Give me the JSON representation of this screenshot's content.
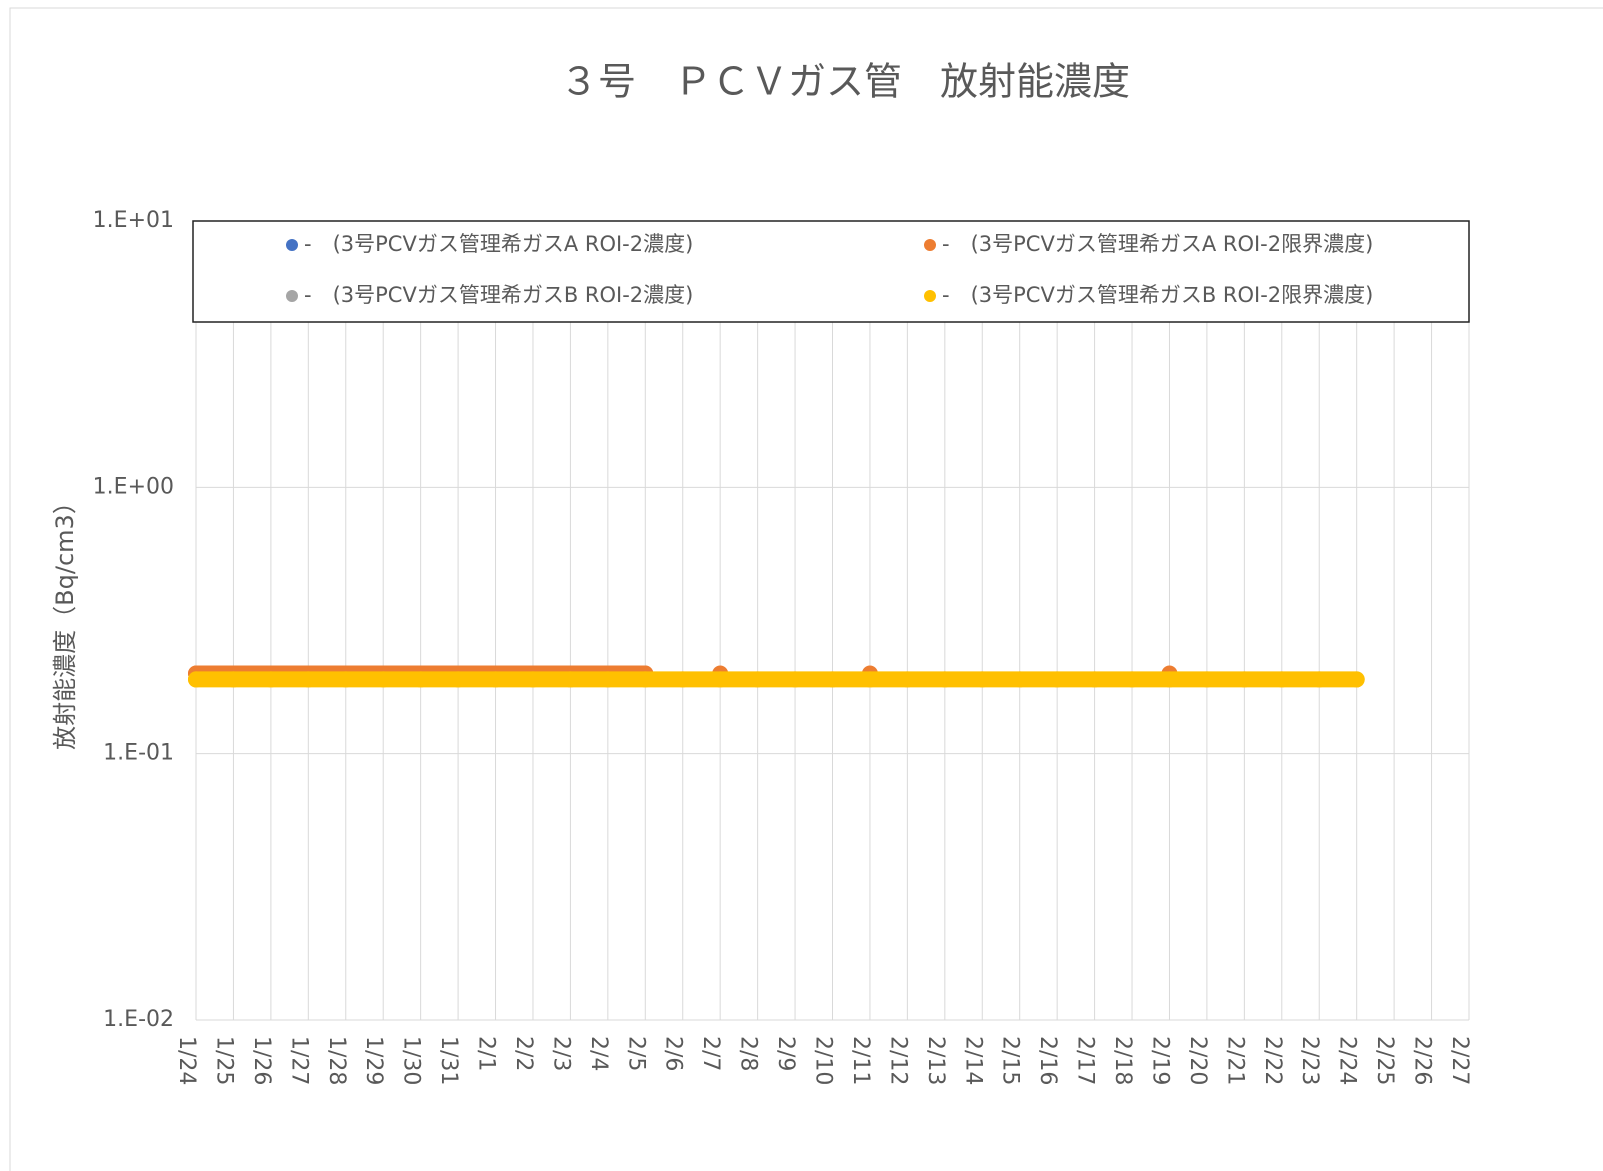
{
  "chart_data": {
    "type": "line",
    "title": "３号　ＰＣＶガス管　放射能濃度",
    "y_label": "放射能濃度（Bq/cm3）",
    "categories": [
      "1/24",
      "1/25",
      "1/26",
      "1/27",
      "1/28",
      "1/29",
      "1/30",
      "1/31",
      "2/1",
      "2/2",
      "2/3",
      "2/4",
      "2/5",
      "2/6",
      "2/7",
      "2/8",
      "2/9",
      "2/10",
      "2/11",
      "2/12",
      "2/13",
      "2/14",
      "2/15",
      "2/16",
      "2/17",
      "2/18",
      "2/19",
      "2/20",
      "2/21",
      "2/22",
      "2/23",
      "2/24",
      "2/25",
      "2/26",
      "2/27"
    ],
    "series": [
      {
        "name": "-　(3号PCVガス管理希ガスA ROI-2濃度)",
        "color": "#4472c4",
        "values": [
          null,
          null,
          null,
          null,
          null,
          null,
          null,
          null,
          null,
          null,
          null,
          null,
          null,
          null,
          null,
          null,
          null,
          null,
          null,
          null,
          null,
          null,
          null,
          null,
          null,
          null,
          null,
          null,
          null,
          null,
          null,
          null,
          null,
          null,
          null
        ]
      },
      {
        "name": "-　(3号PCVガス管理希ガスA ROI-2限界濃度)",
        "color": "#ed7d31",
        "values": [
          0.2,
          0.2,
          0.2,
          0.2,
          0.2,
          0.2,
          0.2,
          0.2,
          0.2,
          0.2,
          0.2,
          0.2,
          0.2,
          null,
          0.2,
          null,
          null,
          null,
          0.2,
          null,
          null,
          null,
          null,
          null,
          null,
          null,
          0.2,
          null,
          null,
          null,
          null,
          null,
          null,
          null,
          null
        ]
      },
      {
        "name": "-　(3号PCVガス管理希ガスB ROI-2濃度)",
        "color": "#a5a5a5",
        "values": [
          null,
          null,
          null,
          null,
          null,
          null,
          null,
          null,
          null,
          null,
          null,
          null,
          null,
          null,
          null,
          null,
          null,
          null,
          null,
          null,
          null,
          null,
          null,
          null,
          null,
          null,
          null,
          null,
          null,
          null,
          null,
          null,
          null,
          null,
          null
        ]
      },
      {
        "name": "-　(3号PCVガス管理希ガスB ROI-2限界濃度)",
        "color": "#ffc000",
        "values": [
          0.19,
          0.19,
          0.19,
          0.19,
          0.19,
          0.19,
          0.19,
          0.19,
          0.19,
          0.19,
          0.19,
          0.19,
          0.19,
          0.19,
          0.19,
          0.19,
          0.19,
          0.19,
          0.19,
          0.19,
          0.19,
          0.19,
          0.19,
          0.19,
          0.19,
          0.19,
          0.19,
          0.19,
          0.19,
          0.19,
          0.19,
          0.19,
          null,
          null,
          null
        ]
      }
    ],
    "log_y": true,
    "ylim": [
      0.01,
      10
    ],
    "yticks": [
      {
        "value": 0.01,
        "label": "1.E-02"
      },
      {
        "value": 0.1,
        "label": "1.E-01"
      },
      {
        "value": 1,
        "label": "1.E+00"
      },
      {
        "value": 10,
        "label": "1.E+01"
      }
    ],
    "grid": true,
    "legend": "top"
  }
}
